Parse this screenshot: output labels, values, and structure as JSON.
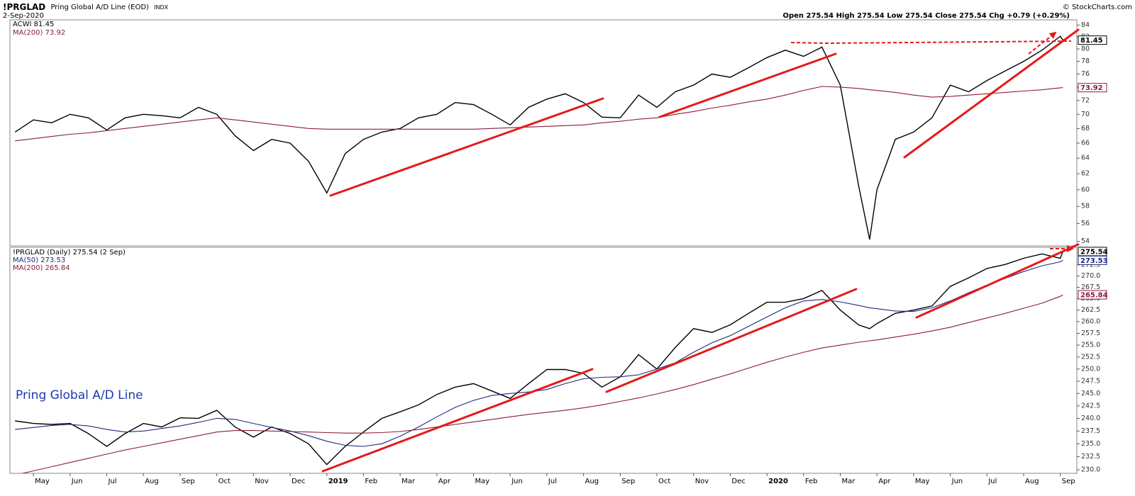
{
  "header": {
    "symbol": "!PRGLAD",
    "name": "Pring Global A/D Line (EOD)",
    "exchange": "INDX",
    "date": "2-Sep-2020",
    "quote": "Open 275.54  High 275.54  Low 275.54  Close 275.54  Chg +0.79 (+0.29%)",
    "credit": "© StockCharts.com"
  },
  "chart_data": [
    {
      "type": "line",
      "log": true,
      "xlim": [
        -0.64,
        28.45
      ],
      "ylim": [
        53.5,
        84.9
      ],
      "yticks": [
        54,
        56,
        58,
        60,
        62,
        64,
        66,
        68,
        70,
        72,
        74,
        76,
        78,
        80,
        82,
        84
      ],
      "x": [
        -0.5,
        0,
        0.5,
        1,
        1.5,
        2,
        2.5,
        3,
        3.5,
        4,
        4.5,
        5,
        5.5,
        6,
        6.5,
        7,
        7.5,
        8,
        8.5,
        9,
        9.5,
        10,
        10.5,
        11,
        11.5,
        12,
        12.5,
        13,
        13.5,
        14,
        14.5,
        15,
        15.5,
        16,
        16.5,
        17,
        17.5,
        18,
        18.5,
        19,
        19.5,
        20,
        20.5,
        21,
        21.5,
        22,
        22.5,
        22.8,
        23,
        23.5,
        24,
        24.5,
        25,
        25.5,
        26,
        26.5,
        27,
        27.5,
        28,
        28.07
      ],
      "series": [
        {
          "name": "ACWI",
          "color": "#000000",
          "values": [
            67.5,
            69.2,
            68.8,
            70,
            69.5,
            67.8,
            69.5,
            70,
            69.8,
            69.5,
            71,
            70,
            67,
            65,
            66.5,
            66,
            63.6,
            59.6,
            64.6,
            66.5,
            67.5,
            68,
            69.5,
            70,
            71.7,
            71.4,
            70,
            68.5,
            71,
            72.2,
            73,
            71.7,
            69.6,
            69.5,
            72.8,
            71,
            73.3,
            74.3,
            76,
            75.5,
            77,
            78.6,
            79.8,
            78.8,
            80.3,
            74.3,
            60.5,
            54.2,
            60,
            66.5,
            67.5,
            69.5,
            74.3,
            73.3,
            75,
            76.5,
            78,
            79.8,
            82.1,
            81.45
          ]
        },
        {
          "name": "MA(200)",
          "color": "#8b1c3c",
          "values": [
            66.3,
            66.6,
            66.9,
            67.2,
            67.4,
            67.7,
            68.0,
            68.3,
            68.6,
            68.9,
            69.2,
            69.5,
            69.2,
            68.9,
            68.6,
            68.3,
            68.0,
            67.9,
            67.9,
            67.9,
            67.9,
            67.9,
            67.9,
            67.9,
            67.9,
            67.9,
            68.0,
            68.1,
            68.2,
            68.3,
            68.4,
            68.5,
            68.8,
            69.0,
            69.3,
            69.5,
            70.0,
            70.4,
            70.9,
            71.3,
            71.8,
            72.2,
            72.8,
            73.5,
            74.1,
            74.0,
            73.8,
            73.6,
            73.5,
            73.2,
            72.8,
            72.5,
            72.6,
            72.8,
            73.0,
            73.2,
            73.4,
            73.6,
            73.9,
            73.92
          ]
        }
      ]
    },
    {
      "type": "line",
      "log": true,
      "title": "Pring Global A/D Line",
      "xlim": [
        -0.64,
        28.45
      ],
      "ylim": [
        229.33,
        276.5
      ],
      "yticks": [
        {
          "value": 230,
          "label": "230.0"
        },
        {
          "value": 232.5,
          "label": "232.5"
        },
        {
          "value": 235,
          "label": "235.0"
        },
        {
          "value": 237.5,
          "label": "237.5"
        },
        {
          "value": 240,
          "label": "240.0"
        },
        {
          "value": 242.5,
          "label": "242.5"
        },
        {
          "value": 245,
          "label": "245.0"
        },
        {
          "value": 247.5,
          "label": "247.5"
        },
        {
          "value": 250,
          "label": "250.0"
        },
        {
          "value": 252.5,
          "label": "252.5"
        },
        {
          "value": 255,
          "label": "255.0"
        },
        {
          "value": 257.5,
          "label": "257.5"
        },
        {
          "value": 260,
          "label": "260.0"
        },
        {
          "value": 262.5,
          "label": "262.5"
        },
        {
          "value": 265,
          "label": "265.0"
        },
        {
          "value": 267.5,
          "label": "267.5"
        },
        {
          "value": 270,
          "label": "270.0"
        },
        {
          "value": 272.5,
          "label": "272.5"
        }
      ],
      "xticks": [
        {
          "value": 0,
          "label": "May"
        },
        {
          "value": 1,
          "label": "Jun"
        },
        {
          "value": 2,
          "label": "Jul"
        },
        {
          "value": 3,
          "label": "Aug"
        },
        {
          "value": 4,
          "label": "Sep"
        },
        {
          "value": 5,
          "label": "Oct"
        },
        {
          "value": 6,
          "label": "Nov"
        },
        {
          "value": 7,
          "label": "Dec"
        },
        {
          "value": 8,
          "label": "2019"
        },
        {
          "value": 9,
          "label": "Feb"
        },
        {
          "value": 10,
          "label": "Mar"
        },
        {
          "value": 11,
          "label": "Apr"
        },
        {
          "value": 12,
          "label": "May"
        },
        {
          "value": 13,
          "label": "Jun"
        },
        {
          "value": 14,
          "label": "Jul"
        },
        {
          "value": 15,
          "label": "Aug"
        },
        {
          "value": 16,
          "label": "Sep"
        },
        {
          "value": 17,
          "label": "Oct"
        },
        {
          "value": 18,
          "label": "Nov"
        },
        {
          "value": 19,
          "label": "Dec"
        },
        {
          "value": 20,
          "label": "2020"
        },
        {
          "value": 21,
          "label": "Feb"
        },
        {
          "value": 22,
          "label": "Mar"
        },
        {
          "value": 23,
          "label": "Apr"
        },
        {
          "value": 24,
          "label": "May"
        },
        {
          "value": 25,
          "label": "Jun"
        },
        {
          "value": 26,
          "label": "Jul"
        },
        {
          "value": 27,
          "label": "Aug"
        },
        {
          "value": 28,
          "label": "Sep"
        }
      ],
      "x": [
        -0.5,
        0,
        0.5,
        1,
        1.5,
        2,
        2.5,
        3,
        3.5,
        4,
        4.5,
        5,
        5.5,
        6,
        6.5,
        7,
        7.5,
        8,
        8.5,
        9,
        9.5,
        10,
        10.5,
        11,
        11.5,
        12,
        12.5,
        13,
        13.5,
        14,
        14.5,
        15,
        15.5,
        16,
        16.5,
        17,
        17.5,
        18,
        18.5,
        19,
        19.5,
        20,
        20.5,
        21,
        21.5,
        22,
        22.5,
        22.8,
        23,
        23.5,
        24,
        24.5,
        25,
        25.5,
        26,
        26.5,
        27,
        27.5,
        28,
        28.07
      ],
      "series": [
        {
          "name": "!PRGLAD (Daily)",
          "suffix": "(2 Sep)",
          "color": "#000000",
          "values": [
            239.5,
            239,
            238.8,
            239,
            237,
            234.5,
            237,
            239,
            238.3,
            240.1,
            240,
            241.6,
            238.3,
            236.3,
            238.3,
            237,
            235,
            231,
            234.5,
            237.3,
            240,
            241.3,
            242.7,
            244.8,
            246.3,
            247,
            245.5,
            244,
            247,
            249.9,
            249.9,
            249.1,
            246.3,
            248.4,
            253,
            250,
            254.5,
            258.5,
            257.7,
            259.3,
            261.8,
            264.2,
            264.2,
            265,
            266.8,
            262.5,
            259.3,
            258.5,
            259.6,
            261.8,
            262.5,
            263.4,
            267.7,
            269.6,
            271.7,
            272.6,
            274,
            275,
            274,
            275.54
          ]
        },
        {
          "name": "MA(50)",
          "color": "#1f2a80",
          "values": [
            237.8,
            238.2,
            238.6,
            238.8,
            238.5,
            237.8,
            237.3,
            237.5,
            238.0,
            238.5,
            239.2,
            240.0,
            239.8,
            239.0,
            238.2,
            237.5,
            236.6,
            235.5,
            234.7,
            234.5,
            235.0,
            236.5,
            238.3,
            240.3,
            242.2,
            243.6,
            244.6,
            245.0,
            245.3,
            245.8,
            247.0,
            248.0,
            248.3,
            248.4,
            248.8,
            250.0,
            251.3,
            253.5,
            255.5,
            257.0,
            259.0,
            261.0,
            263.0,
            264.5,
            264.8,
            264.3,
            263.5,
            263.0,
            262.8,
            262.3,
            262.2,
            263.0,
            264.5,
            266.3,
            268.0,
            269.5,
            271.0,
            272.3,
            273.2,
            273.53
          ]
        },
        {
          "name": "MA(200)",
          "color": "#8b1c3c",
          "values": [
            229.0,
            229.8,
            230.6,
            231.4,
            232.2,
            233.0,
            233.8,
            234.5,
            235.2,
            235.9,
            236.6,
            237.3,
            237.6,
            237.6,
            237.5,
            237.4,
            237.3,
            237.2,
            237.1,
            237.1,
            237.2,
            237.4,
            237.8,
            238.3,
            238.8,
            239.3,
            239.8,
            240.3,
            240.8,
            241.2,
            241.6,
            242.1,
            242.7,
            243.4,
            244.1,
            244.9,
            245.8,
            246.8,
            247.9,
            249.0,
            250.2,
            251.4,
            252.5,
            253.5,
            254.4,
            255.0,
            255.6,
            255.9,
            256.1,
            256.7,
            257.3,
            258.0,
            258.8,
            259.8,
            260.8,
            261.8,
            262.9,
            264.0,
            265.5,
            265.84
          ]
        }
      ]
    }
  ]
}
